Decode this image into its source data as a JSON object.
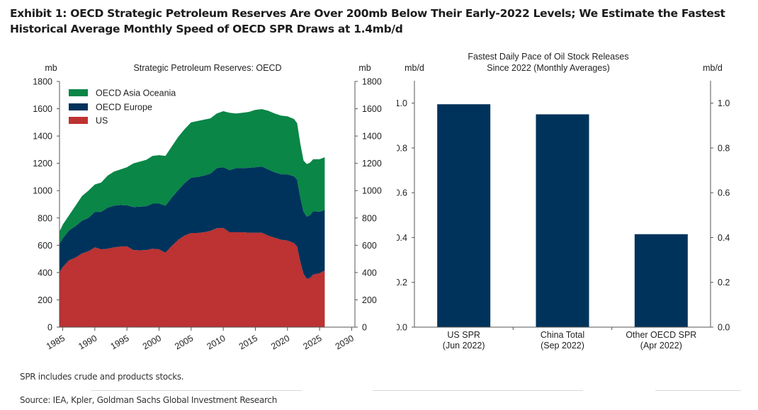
{
  "exhibit": {
    "title": "Exhibit 1: OECD Strategic Petroleum Reserves Are Over 200mb Below Their Early-2022 Levels; We Estimate the Fastest Historical Average Monthly Speed of OECD SPR Draws at 1.4mb/d"
  },
  "notes": {
    "footnote": "SPR includes crude and products stocks.",
    "source": "Source: IEA, Kpler, Goldman Sachs Global Investment Research"
  },
  "colors": {
    "asia_oceania": "#0a8647",
    "europe": "#00335b",
    "us": "#bd3232",
    "bar": "#00335b",
    "axis": "#555555"
  },
  "chart_data": [
    {
      "type": "area",
      "stacked": true,
      "title": "Strategic Petroleum Reserves: OECD",
      "ylabel_left": "mb",
      "ylabel_right": "mb",
      "ylim": [
        0,
        1800
      ],
      "yticks": [
        0,
        200,
        400,
        600,
        800,
        1000,
        1200,
        1400,
        1600,
        1800
      ],
      "xlim": [
        1984.5,
        2030.5
      ],
      "xticks": [
        1985,
        1990,
        1995,
        2000,
        2005,
        2010,
        2015,
        2020,
        2025,
        2030
      ],
      "legend_position": "top-left",
      "x": [
        1984.5,
        1985,
        1986,
        1987,
        1988,
        1989,
        1990,
        1991,
        1992,
        1993,
        1994,
        1995,
        1996,
        1997,
        1998,
        1999,
        2000,
        2001,
        2002,
        2003,
        2004,
        2005,
        2006,
        2007,
        2008,
        2009,
        2010,
        2011,
        2012,
        2013,
        2014,
        2015,
        2016,
        2017,
        2018,
        2019,
        2020,
        2021,
        2021.5,
        2022,
        2022.5,
        2023,
        2023.5,
        2024,
        2025,
        2025.8
      ],
      "series": [
        {
          "name": "US",
          "values": [
            400,
            440,
            490,
            510,
            540,
            555,
            585,
            570,
            575,
            585,
            590,
            592,
            565,
            563,
            565,
            575,
            570,
            545,
            595,
            640,
            672,
            690,
            690,
            695,
            705,
            725,
            727,
            695,
            695,
            695,
            692,
            692,
            692,
            670,
            655,
            640,
            635,
            615,
            590,
            480,
            390,
            355,
            360,
            385,
            395,
            415
          ]
        },
        {
          "name": "OECD Europe",
          "values": [
            210,
            210,
            220,
            230,
            240,
            245,
            260,
            275,
            300,
            305,
            305,
            300,
            315,
            320,
            320,
            330,
            335,
            345,
            355,
            365,
            385,
            405,
            410,
            415,
            420,
            440,
            445,
            455,
            470,
            470,
            475,
            480,
            485,
            485,
            480,
            480,
            485,
            490,
            490,
            470,
            455,
            455,
            460,
            465,
            450,
            445
          ]
        },
        {
          "name": "OECD Asia Oceania",
          "values": [
            90,
            100,
            110,
            150,
            180,
            200,
            200,
            215,
            235,
            250,
            260,
            280,
            320,
            330,
            340,
            350,
            355,
            365,
            375,
            390,
            395,
            405,
            410,
            410,
            405,
            400,
            410,
            420,
            400,
            405,
            410,
            420,
            420,
            430,
            430,
            430,
            425,
            420,
            415,
            395,
            375,
            385,
            385,
            380,
            385,
            385
          ]
        }
      ]
    },
    {
      "type": "bar",
      "title": "Fastest Daily Pace of Oil Stock Releases Since 2022 (Monthly Averages)",
      "title_lines": [
        "Fastest Daily Pace of Oil Stock Releases",
        "Since 2022 (Monthly Averages)"
      ],
      "ylabel_left": "mb/d",
      "ylabel_right": "mb/d",
      "ylim": [
        0,
        1.1
      ],
      "yticks": [
        "0.0",
        "0.2",
        "0.4",
        "0.6",
        "0.8",
        "1.0"
      ],
      "categories": [
        {
          "line1": "US SPR",
          "line2": "(Jun 2022)"
        },
        {
          "line1": "China Total",
          "line2": "(Sep 2022)"
        },
        {
          "line1": "Other OECD SPR",
          "line2": "(Apr 2022)"
        }
      ],
      "values": [
        0.995,
        0.95,
        0.415
      ]
    }
  ]
}
